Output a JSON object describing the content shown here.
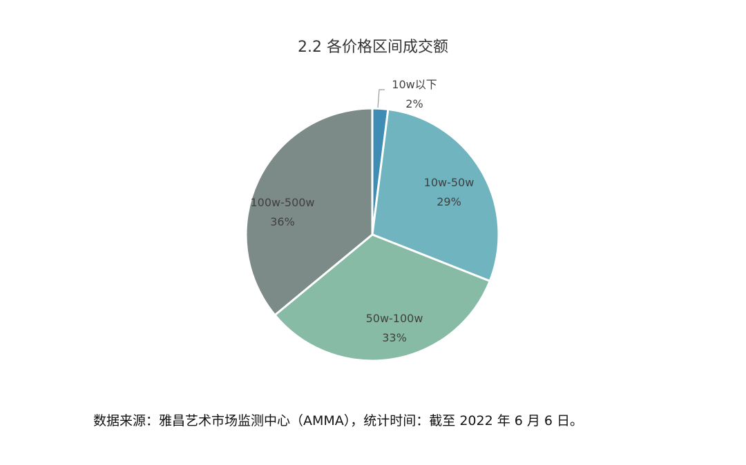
{
  "chart_data": {
    "type": "pie",
    "title": "2.2 各价格区间成交额",
    "start": "top",
    "direction": "clockwise",
    "slices": [
      {
        "label": "10w以下",
        "value": 2,
        "display": "2%",
        "color": "#3f8db5"
      },
      {
        "label": "10w-50w",
        "value": 29,
        "display": "29%",
        "color": "#6fb4bf"
      },
      {
        "label": "50w-100w",
        "value": 33,
        "display": "33%",
        "color": "#88bba6"
      },
      {
        "label": "100w-500w",
        "value": 36,
        "display": "36%",
        "color": "#7c8a88"
      }
    ]
  },
  "source": "数据来源：雅昌艺术市场监测中心（AMMA），统计时间：截至 2022 年 6 月 6 日。"
}
